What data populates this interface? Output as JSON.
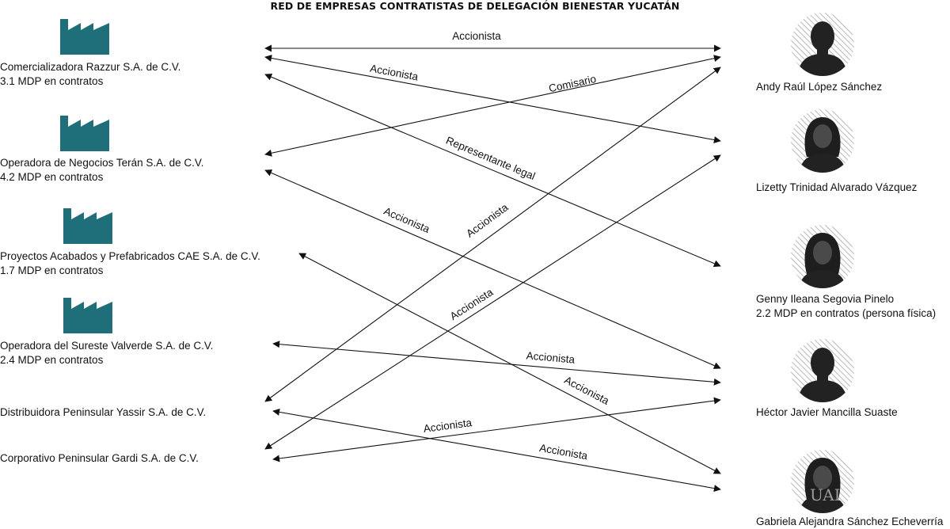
{
  "title": "RED DE EMPRESAS CONTRATISTAS DE DELEGACIÓN BIENESTAR YUCATÁN",
  "companies": [
    {
      "name": "Comercializadora Razzur S.A. de C.V.",
      "contracts": "3.1 MDP en contratos",
      "icon": "factory-icon"
    },
    {
      "name": "Operadora de Negocios Terán S.A. de C.V.",
      "contracts": "4.2 MDP en contratos",
      "icon": "factory-icon"
    },
    {
      "name": "Proyectos Acabados y Prefabricados CAE S.A. de C.V.",
      "contracts": "1.7 MDP en contratos",
      "icon": "factory-icon"
    },
    {
      "name": "Operadora del Sureste Valverde S.A. de C.V.",
      "contracts": "2.4 MDP en contratos",
      "icon": "factory-icon"
    },
    {
      "name": "Distribuidora Peninsular Yassir S.A. de C.V.",
      "contracts": "",
      "icon": ""
    },
    {
      "name": "Corporativo Peninsular Gardi S.A. de C.V.",
      "contracts": "",
      "icon": ""
    }
  ],
  "people": [
    {
      "name": "Andy Raúl López Sánchez",
      "detail": "",
      "icon": "male-silhouette-icon"
    },
    {
      "name": "Lizetty Trinidad Alvarado Vázquez",
      "detail": "",
      "icon": "female-silhouette-icon"
    },
    {
      "name": "Genny Ileana Segovia Pinelo",
      "detail": "2.2 MDP en contratos (persona física)",
      "icon": "female-silhouette-icon"
    },
    {
      "name": "Héctor Javier Mancilla Suaste",
      "detail": "",
      "icon": "male-silhouette-icon"
    },
    {
      "name": "Gabriela Alejandra Sánchez Echeverría",
      "detail": "",
      "icon": "female-silhouette-icon"
    }
  ],
  "relations": [
    {
      "label": "Accionista"
    },
    {
      "label": "Accionista"
    },
    {
      "label": "Comisario"
    },
    {
      "label": "Representante legal"
    },
    {
      "label": "Accionista"
    },
    {
      "label": "Accionista"
    },
    {
      "label": "Accionista"
    },
    {
      "label": "Accionista"
    },
    {
      "label": "Accionista"
    },
    {
      "label": "Accionista"
    },
    {
      "label": "Accionista"
    }
  ],
  "watermark": "UAI",
  "colors": {
    "factory": "#1f6f7a",
    "line": "#111111",
    "silhouette": "#222222",
    "hatch": "#b5b5b5"
  }
}
